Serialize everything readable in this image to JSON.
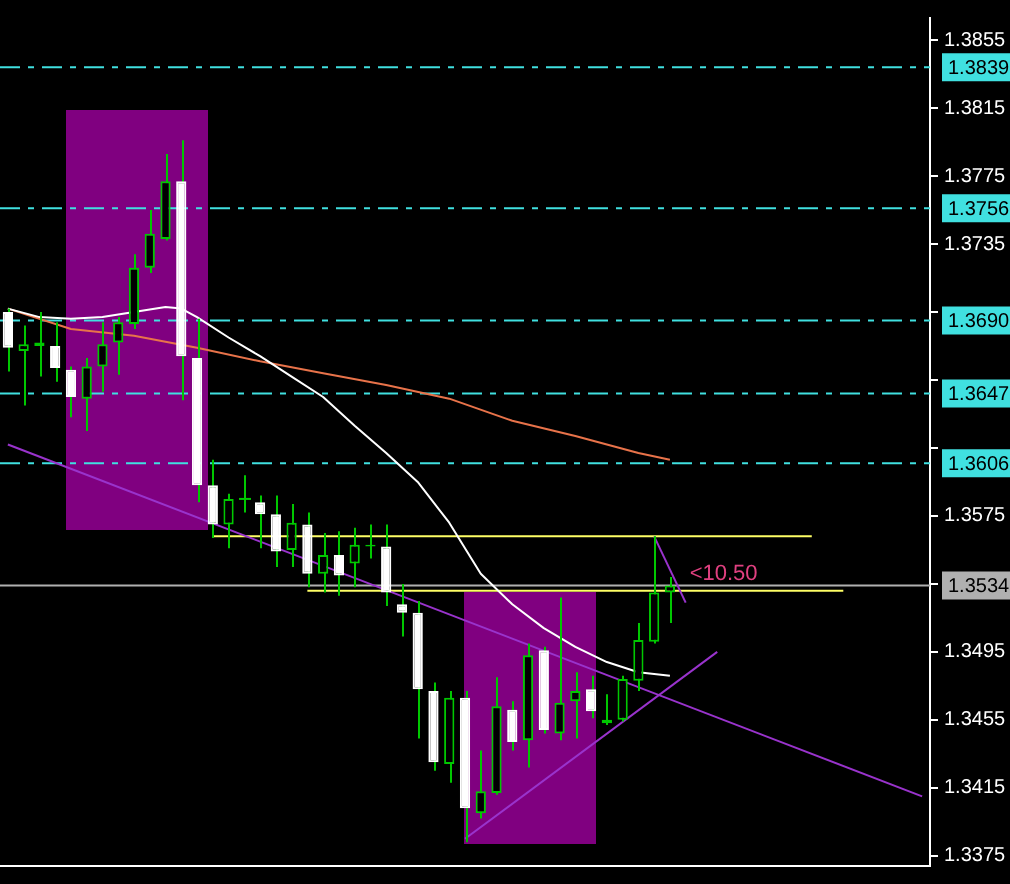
{
  "chart_data": {
    "type": "candlestick",
    "color": "#00c800",
    "colors": [
      "#ffffff",
      "#00c800",
      "#00c800",
      "#ffffff",
      "#ffffff",
      "#00c800",
      "#00c800",
      "#00c800",
      "#00c800",
      "#00c800",
      "#00c800",
      "#ffffff",
      "#ffffff",
      "#ffffff",
      "#00c800",
      "#00c800",
      "#ffffff",
      "#ffffff",
      "#00c800",
      "#ffffff",
      "#00c800",
      "#ffffff",
      "#00c800",
      "#00c800",
      "#ffffff",
      "#ffffff",
      "#ffffff",
      "#ffffff",
      "#00c800",
      "#ffffff",
      "#00c800",
      "#00c800",
      "#ffffff",
      "#00c800",
      "#ffffff",
      "#00c800",
      "#00c800",
      "#ffffff",
      "#00c800",
      "#00c800",
      "#00c800",
      "#00c800",
      "#00c800",
      null,
      null,
      null,
      null,
      null,
      null,
      null,
      null,
      null,
      null,
      null,
      null,
      null,
      null,
      null,
      null
    ],
    "grid": false,
    "legend": false,
    "tick_labels": "y",
    "categories": [
      null,
      null,
      null,
      null,
      null,
      null,
      null,
      null,
      null,
      null,
      null,
      null,
      null,
      null,
      null,
      null,
      null,
      null,
      null,
      null,
      null,
      null,
      null,
      null,
      null,
      null,
      null,
      null,
      null,
      null,
      null,
      null,
      null,
      null,
      null,
      null,
      null,
      null,
      null,
      null,
      null,
      null,
      null,
      null,
      null,
      null,
      null,
      null,
      null,
      null,
      null,
      null,
      null,
      null,
      null,
      null,
      null,
      null,
      null
    ],
    "ohlc": [
      [
        1.3695,
        1.3697,
        1.366,
        1.3674
      ],
      [
        1.3672,
        1.3687,
        1.364,
        1.3676
      ],
      [
        1.3675,
        1.3695,
        1.3657,
        1.3677
      ],
      [
        1.3675,
        1.3689,
        1.3654,
        1.3662
      ],
      [
        1.3661,
        1.3663,
        1.3633,
        1.3645
      ],
      [
        1.3644,
        1.3668,
        1.3625,
        1.3663
      ],
      [
        1.3663,
        1.3689,
        1.3648,
        1.3676
      ],
      [
        1.3677,
        1.3692,
        1.3658,
        1.3689
      ],
      [
        1.3688,
        1.3729,
        1.3685,
        1.3721
      ],
      [
        1.3721,
        1.3755,
        1.3718,
        1.3741
      ],
      [
        1.3738,
        1.3788,
        1.3737,
        1.3772
      ],
      [
        1.3772,
        1.3796,
        1.3643,
        1.3669
      ],
      [
        1.3668,
        1.3691,
        1.3583,
        1.3593
      ],
      [
        1.3593,
        1.3608,
        1.3562,
        1.357
      ],
      [
        1.357,
        1.3588,
        1.3556,
        1.3585
      ],
      [
        1.3585,
        1.3599,
        1.3577,
        1.3585
      ],
      [
        1.3583,
        1.3587,
        1.3556,
        1.3576
      ],
      [
        1.3576,
        1.3587,
        1.3545,
        1.3554
      ],
      [
        1.3555,
        1.3582,
        1.3545,
        1.3571
      ],
      [
        1.357,
        1.3577,
        1.3533,
        1.3541
      ],
      [
        1.3541,
        1.3565,
        1.353,
        1.3552
      ],
      [
        1.3552,
        1.3566,
        1.3528,
        1.354
      ],
      [
        1.3547,
        1.3568,
        1.3533,
        1.3558
      ],
      [
        1.3557,
        1.357,
        1.355,
        1.3558
      ],
      [
        1.3557,
        1.357,
        1.3522,
        1.353
      ],
      [
        1.3523,
        1.3535,
        1.3504,
        1.3518
      ],
      [
        1.3518,
        1.3525,
        1.3444,
        1.3473
      ],
      [
        1.3472,
        1.3477,
        1.3425,
        1.343
      ],
      [
        1.3429,
        1.3472,
        1.3418,
        1.3468
      ],
      [
        1.3468,
        1.3472,
        1.3383,
        1.3403
      ],
      [
        1.34,
        1.3437,
        1.3397,
        1.3413
      ],
      [
        1.3412,
        1.348,
        1.3411,
        1.3463
      ],
      [
        1.3461,
        1.3466,
        1.3437,
        1.3442
      ],
      [
        1.3443,
        1.35,
        1.3427,
        1.3493
      ],
      [
        1.3496,
        1.3498,
        1.3447,
        1.3449
      ],
      [
        1.3447,
        1.3527,
        1.3443,
        1.3465
      ],
      [
        1.3466,
        1.3483,
        1.3444,
        1.3472
      ],
      [
        1.3473,
        1.3481,
        1.3456,
        1.346
      ],
      [
        1.3453,
        1.347,
        1.3452,
        1.3455
      ],
      [
        1.3455,
        1.3481,
        1.3454,
        1.3479
      ],
      [
        1.3478,
        1.3512,
        1.3472,
        1.3502
      ],
      [
        1.3501,
        1.3563,
        1.35,
        1.353
      ],
      [
        1.353,
        1.3539,
        1.3512,
        1.3534
      ],
      null,
      null,
      null,
      null,
      null,
      null,
      null,
      null,
      null,
      null,
      null,
      null,
      null,
      null,
      null,
      null
    ],
    "series": [
      {
        "type": "line",
        "color": "#ffffff",
        "values": [
          1.3697,
          null,
          1.3692,
          null,
          1.3691,
          null,
          1.3692,
          null,
          1.3695,
          null,
          1.3698,
          1.3697,
          1.3692,
          null,
          1.368,
          null,
          1.3669,
          null,
          1.3657,
          null,
          1.3645,
          null,
          1.3628,
          null,
          1.3612,
          null,
          1.3595,
          null,
          1.3571,
          null,
          1.3541,
          null,
          1.3523,
          null,
          1.3509,
          null,
          1.3498,
          null,
          1.3489,
          null,
          1.3483,
          null,
          1.3481,
          null,
          null,
          null,
          null,
          null,
          null,
          null,
          null,
          null,
          null,
          null,
          null,
          null,
          null,
          null,
          null
        ]
      },
      {
        "type": "line",
        "color": "#e8734a",
        "values": [
          1.3697,
          null,
          null,
          null,
          1.3685,
          null,
          null,
          null,
          1.3681,
          null,
          null,
          null,
          1.3674,
          null,
          null,
          null,
          1.3666,
          null,
          null,
          null,
          1.3659,
          null,
          null,
          null,
          1.3652,
          null,
          null,
          null,
          1.3644,
          null,
          null,
          null,
          1.3631,
          null,
          null,
          null,
          1.3622,
          null,
          null,
          null,
          1.3612,
          null,
          1.3608,
          null,
          null,
          null,
          null,
          null,
          null,
          null,
          null,
          null,
          null,
          null,
          null,
          null,
          null,
          null,
          null
        ]
      },
      {
        "type": "line",
        "color": "#9933cc",
        "values": [
          1.3617,
          null,
          null,
          null,
          null,
          null,
          null,
          null,
          null,
          null,
          null,
          null,
          null,
          null,
          null,
          null,
          null,
          null,
          null,
          null,
          null,
          null,
          null,
          null,
          null,
          null,
          null,
          null,
          null,
          null,
          null,
          null,
          null,
          null,
          null,
          null,
          null,
          null,
          null,
          null,
          null,
          null,
          null,
          null,
          null,
          null,
          null,
          null,
          null,
          null,
          null,
          null,
          null,
          null,
          null,
          null,
          null,
          null,
          1.341
        ]
      },
      {
        "type": "line",
        "color": "#9933cc",
        "values": [
          null,
          null,
          null,
          null,
          null,
          null,
          null,
          null,
          null,
          null,
          null,
          null,
          null,
          null,
          null,
          null,
          null,
          null,
          null,
          null,
          null,
          null,
          null,
          null,
          null,
          null,
          null,
          null,
          null,
          1.3385,
          null,
          null,
          null,
          null,
          null,
          null,
          null,
          null,
          null,
          null,
          null,
          null,
          null,
          null,
          null,
          1.3495,
          null,
          null,
          null,
          null,
          null,
          null,
          null,
          null,
          null,
          null,
          null,
          null,
          null
        ]
      },
      {
        "type": "line",
        "color": "#9933cc",
        "values": [
          null,
          null,
          null,
          null,
          null,
          null,
          null,
          null,
          null,
          null,
          null,
          null,
          null,
          null,
          null,
          null,
          null,
          null,
          null,
          null,
          null,
          null,
          null,
          null,
          null,
          null,
          null,
          null,
          null,
          null,
          null,
          null,
          null,
          null,
          null,
          null,
          null,
          null,
          null,
          null,
          null,
          1.3563,
          null,
          1.3524,
          null,
          null,
          null,
          null,
          null,
          null,
          null,
          null,
          null,
          null,
          null,
          null,
          null,
          null,
          null
        ]
      },
      {
        "type": "line",
        "color": "#ffff66",
        "values": [
          null,
          null,
          null,
          null,
          null,
          null,
          null,
          null,
          null,
          null,
          null,
          null,
          null,
          1.3563,
          null,
          null,
          null,
          null,
          null,
          null,
          null,
          null,
          null,
          null,
          null,
          null,
          null,
          null,
          null,
          null,
          null,
          null,
          null,
          null,
          null,
          null,
          null,
          null,
          null,
          null,
          null,
          null,
          null,
          null,
          null,
          null,
          null,
          null,
          null,
          null,
          null,
          1.3563,
          null,
          null,
          null,
          null,
          null,
          null,
          null
        ]
      },
      {
        "type": "line",
        "color": "#ffff66",
        "values": [
          null,
          null,
          null,
          null,
          null,
          null,
          null,
          null,
          null,
          null,
          null,
          null,
          null,
          null,
          null,
          null,
          null,
          null,
          null,
          1.3531,
          null,
          null,
          null,
          null,
          null,
          null,
          null,
          null,
          null,
          null,
          null,
          null,
          null,
          null,
          null,
          null,
          null,
          null,
          null,
          null,
          null,
          null,
          null,
          null,
          null,
          null,
          null,
          null,
          null,
          null,
          null,
          null,
          null,
          1.3531,
          null,
          null,
          null,
          null,
          null
        ]
      }
    ],
    "ylim": [
      1.3369,
      1.3868
    ],
    "yticks": [
      1.3855,
      1.3815,
      1.3775,
      1.3735,
      {
        "value": 1.3695,
        "label": null
      },
      {
        "value": 1.3655,
        "label": null
      },
      {
        "value": 1.3615,
        "label": null
      },
      1.3575,
      {
        "value": 1.3535,
        "label": null
      },
      1.3495,
      1.3455,
      1.3415,
      1.3375
    ],
    "ref_lines": [
      {
        "axis": "y",
        "value": 1.3839,
        "label": "1.3839",
        "color": "#40e0e0",
        "line_style": "dashed"
      },
      {
        "axis": "y",
        "value": 1.3756,
        "label": "1.3756",
        "color": "#40e0e0",
        "line_style": "dashed"
      },
      {
        "axis": "y",
        "value": 1.369,
        "label": "1.3690",
        "color": "#40e0e0",
        "line_style": "dashed"
      },
      {
        "axis": "y",
        "value": 1.3647,
        "label": "1.3647",
        "color": "#40e0e0",
        "line_style": "dashed"
      },
      {
        "axis": "y",
        "value": 1.3606,
        "label": "1.3606",
        "color": "#40e0e0",
        "line_style": "dashed"
      },
      {
        "axis": "y",
        "value": 1.3534,
        "label": "1.3534",
        "color": "#b0b0b0",
        "line_style": "solid"
      }
    ],
    "annotations": [
      {
        "text": "<10.50",
        "y": 1.3531
      }
    ]
  }
}
